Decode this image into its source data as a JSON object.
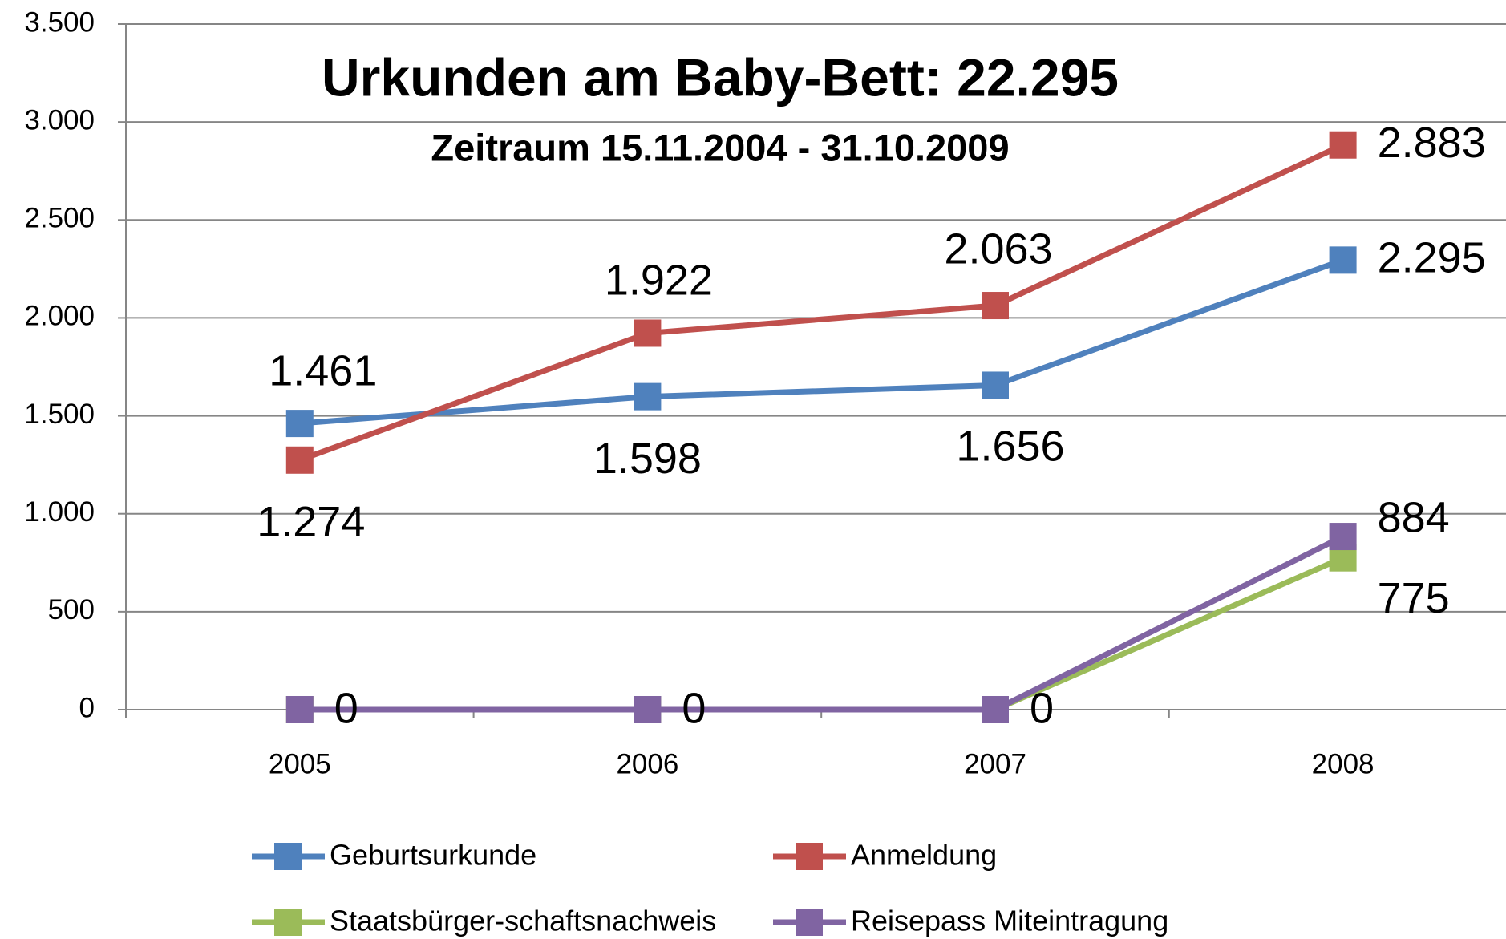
{
  "chart_data": {
    "type": "line",
    "title": "Urkunden am Baby-Bett: 22.295",
    "subtitle": "Zeitraum 15.11.2004 - 31.10.2009",
    "categories": [
      "2005",
      "2006",
      "2007",
      "2008"
    ],
    "series": [
      {
        "name": "Geburtsurkunde",
        "color": "#4f81bd",
        "values": [
          1461,
          1598,
          1656,
          2295
        ],
        "value_labels": [
          "1.461",
          "1.598",
          "1.656",
          "2.295"
        ]
      },
      {
        "name": "Anmeldung",
        "color": "#c0504d",
        "values": [
          1274,
          1922,
          2063,
          2883
        ],
        "value_labels": [
          "1.274",
          "1.922",
          "2.063",
          "2.883"
        ]
      },
      {
        "name": "Staatsbürger-schaftsnachweis",
        "color": "#9bbb59",
        "values": [
          0,
          0,
          0,
          775
        ],
        "value_labels": [
          null,
          null,
          null,
          "775"
        ]
      },
      {
        "name": "Reisepass Miteintragung",
        "color": "#8064a2",
        "values": [
          0,
          0,
          0,
          884
        ],
        "value_labels": [
          0,
          0,
          0,
          "884"
        ]
      }
    ],
    "ylim": [
      0,
      3500
    ],
    "yticks": [
      0,
      500,
      {
        "value": 1000,
        "label": "1.000"
      },
      {
        "value": 1500,
        "label": "1.500"
      },
      {
        "value": 2000,
        "label": "2.000"
      },
      {
        "value": 2500,
        "label": "2.500"
      },
      {
        "value": 3000,
        "label": "3.000"
      },
      {
        "value": 3500,
        "label": "3.500"
      }
    ],
    "grid": true,
    "legend": "bottom"
  }
}
